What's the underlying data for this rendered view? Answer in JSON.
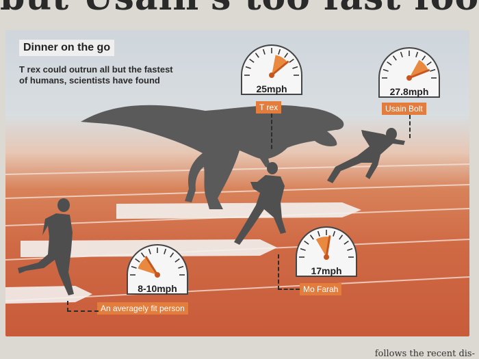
{
  "headline": "but Usain's too fast food",
  "infographic": {
    "title": "Dinner on the go",
    "subtitle": "T rex could outrun all but the fastest of humans, scientists have found"
  },
  "gauges": [
    {
      "subject": "T rex",
      "speed": "25mph",
      "needle_fraction": 0.78,
      "colors": {
        "fill": "#e8893f"
      }
    },
    {
      "subject": "Usain Bolt",
      "speed": "27.8mph",
      "needle_fraction": 0.88,
      "colors": {
        "fill": "#e8893f"
      }
    },
    {
      "subject": "Mo Farah",
      "speed": "17mph",
      "needle_fraction": 0.55,
      "colors": {
        "fill": "#e8893f"
      }
    },
    {
      "subject": "An averagely fit person",
      "speed": "8-10mph",
      "needle_fraction": 0.32,
      "colors": {
        "fill": "#e8893f"
      }
    }
  ],
  "footer_fragment": "follows the recent dis-"
}
